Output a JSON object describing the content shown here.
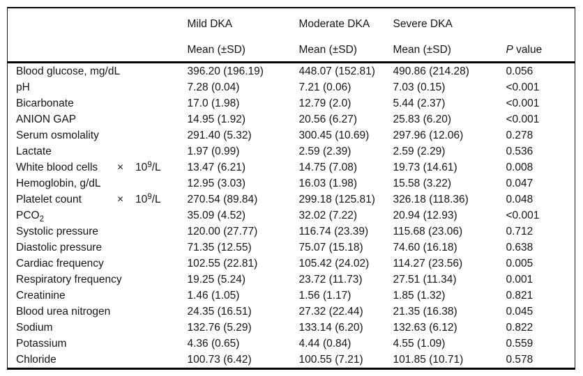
{
  "table": {
    "col_groups": [
      "Mild DKA",
      "Moderate DKA",
      "Severe DKA"
    ],
    "subheaders": [
      "Mean (±SD)",
      "Mean (±SD)",
      "Mean (±SD)"
    ],
    "pvalue_header": {
      "p": "P",
      "rest": " value"
    },
    "rows": [
      {
        "label": [
          {
            "t": "Blood glucose, mg/dL"
          }
        ],
        "values": [
          "396.20 (196.19)",
          "448.07 (152.81)",
          "490.86 (214.28)",
          "0.056"
        ]
      },
      {
        "label": [
          {
            "t": "pH"
          }
        ],
        "values": [
          "7.28 (0.04)",
          "7.21 (0.06)",
          "7.03 (0.15)",
          "<0.001"
        ]
      },
      {
        "label": [
          {
            "t": "Bicarbonate"
          }
        ],
        "values": [
          "17.0 (1.98)",
          "12.79 (2.0)",
          "5.44 (2.37)",
          "<0.001"
        ]
      },
      {
        "label": [
          {
            "t": "ANION GAP"
          }
        ],
        "values": [
          "14.95 (1.92)",
          "20.56 (6.27)",
          "25.83 (6.20)",
          "<0.001"
        ]
      },
      {
        "label": [
          {
            "t": "Serum osmolality"
          }
        ],
        "values": [
          "291.40 (5.32)",
          "300.45 (10.69)",
          "297.96 (12.06)",
          "0.278"
        ]
      },
      {
        "label": [
          {
            "t": "Lactate"
          }
        ],
        "values": [
          "1.97 (0.99)",
          "2.59 (2.39)",
          "2.59 (2.29)",
          "0.536"
        ]
      },
      {
        "label": [
          {
            "t": "White blood cells",
            "tab": 145
          },
          {
            "t": "×",
            "times": true
          },
          {
            "t": "10"
          },
          {
            "t": "9",
            "sup": true
          },
          {
            "t": "/L"
          }
        ],
        "values": [
          "13.47 (6.21)",
          "14.75 (7.08)",
          "19.73 (14.61)",
          "0.008"
        ]
      },
      {
        "label": [
          {
            "t": "Hemoglobin, g/dL"
          }
        ],
        "values": [
          "12.95 (3.03)",
          "16.03 (1.98)",
          "15.58 (3.22)",
          "0.047"
        ]
      },
      {
        "label": [
          {
            "t": "Platelet count",
            "tab": 145
          },
          {
            "t": "×",
            "times": true
          },
          {
            "t": "10"
          },
          {
            "t": "9",
            "sup": true
          },
          {
            "t": "/L"
          }
        ],
        "values": [
          "270.54 (89.84)",
          "299.18 (125.81)",
          "326.18 (118.36)",
          "0.048"
        ]
      },
      {
        "label": [
          {
            "t": "PCO"
          },
          {
            "t": "2",
            "sub": true
          }
        ],
        "values": [
          "35.09 (4.52)",
          "32.02 (7.22)",
          "20.94 (12.93)",
          "<0.001"
        ]
      },
      {
        "label": [
          {
            "t": "Systolic pressure"
          }
        ],
        "values": [
          "120.00 (27.77)",
          "116.74 (23.39)",
          "115.68 (23.06)",
          "0.712"
        ]
      },
      {
        "label": [
          {
            "t": "Diastolic pressure"
          }
        ],
        "values": [
          "71.35 (12.55)",
          "75.07 (15.18)",
          "74.60 (16.18)",
          "0.638"
        ]
      },
      {
        "label": [
          {
            "t": "Cardiac frequency"
          }
        ],
        "values": [
          "102.55 (22.81)",
          "105.42 (24.02)",
          "114.27 (23.56)",
          "0.005"
        ]
      },
      {
        "label": [
          {
            "t": "Respiratory frequency"
          }
        ],
        "values": [
          "19.25 (5.24)",
          "23.72 (11.73)",
          "27.51 (11.34)",
          "0.001"
        ]
      },
      {
        "label": [
          {
            "t": "Creatinine"
          }
        ],
        "values": [
          "1.46 (1.05)",
          "1.56 (1.17)",
          "1.85 (1.32)",
          "0.821"
        ]
      },
      {
        "label": [
          {
            "t": "Blood urea nitrogen"
          }
        ],
        "values": [
          "24.35 (16.51)",
          "27.32 (22.44)",
          "21.35 (16.38)",
          "0.045"
        ]
      },
      {
        "label": [
          {
            "t": "Sodium"
          }
        ],
        "values": [
          "132.76 (5.29)",
          "133.14 (6.20)",
          "132.63 (6.12)",
          "0.822"
        ]
      },
      {
        "label": [
          {
            "t": "Potassium"
          }
        ],
        "values": [
          "4.36 (0.65)",
          "4.44 (0.84)",
          "4.55 (1.09)",
          "0.559"
        ]
      },
      {
        "label": [
          {
            "t": "Chloride"
          }
        ],
        "values": [
          "100.73 (6.42)",
          "100.55 (7.21)",
          "101.85 (10.71)",
          "0.578"
        ]
      }
    ]
  }
}
